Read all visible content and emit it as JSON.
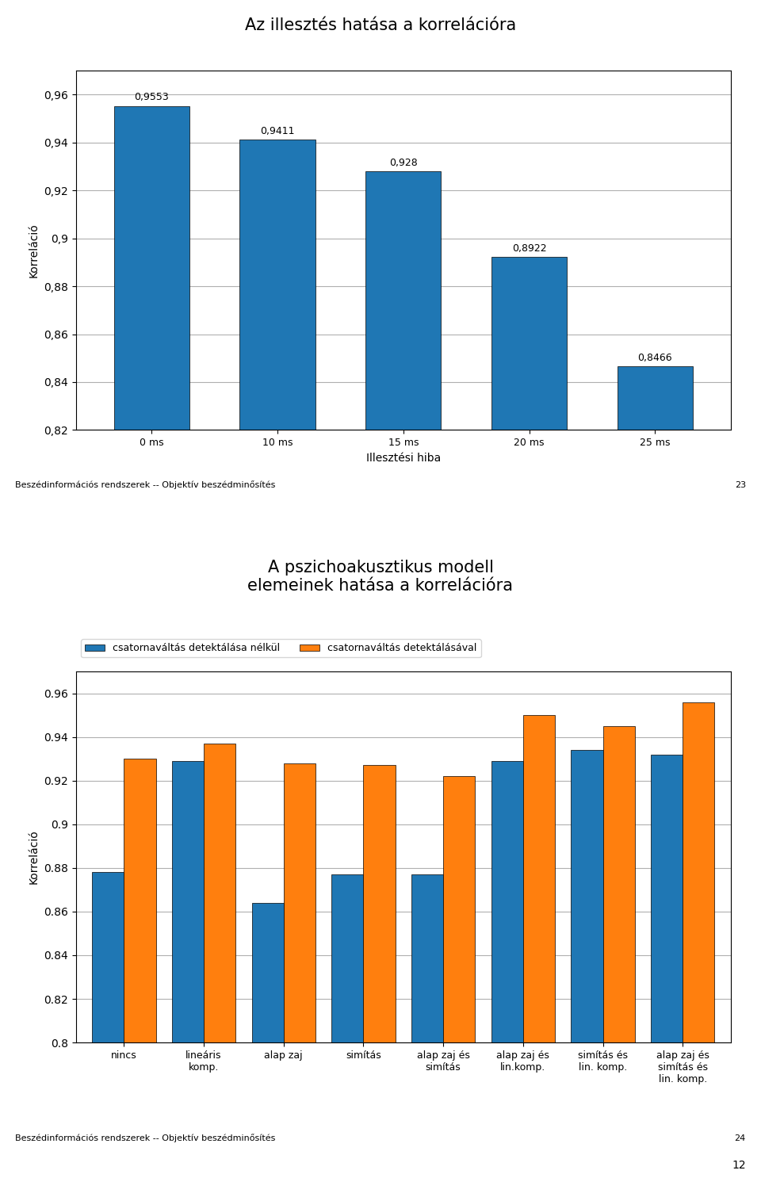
{
  "chart_data": [
    {
      "type": "bar",
      "title": "Az illesztés hatása a korrelációra",
      "categories": [
        "0 ms",
        "10 ms",
        "15 ms",
        "20 ms",
        "25 ms"
      ],
      "values": [
        0.9553,
        0.9411,
        0.928,
        0.8922,
        0.8466
      ],
      "value_labels": [
        "0,9553",
        "0,9411",
        "0,928",
        "0,8922",
        "0,8466"
      ],
      "data_labels": true,
      "xlabel": "Illesztési hiba",
      "ylabel": "Korreláció",
      "ylim": [
        0.82,
        0.97
      ],
      "yticks": [
        {
          "value": 0.82,
          "label": "0,82"
        },
        {
          "value": 0.84,
          "label": "0,84"
        },
        {
          "value": 0.86,
          "label": "0,86"
        },
        {
          "value": 0.88,
          "label": "0,88"
        },
        {
          "value": 0.9,
          "label": "0,9"
        },
        {
          "value": 0.92,
          "label": "0,92"
        },
        {
          "value": 0.94,
          "label": "0,94"
        },
        {
          "value": 0.96,
          "label": "0,96"
        }
      ],
      "grid": true,
      "annotations": [
        "Beszédinformációs rendszerek -- Objektív beszédminősítés",
        "23"
      ]
    },
    {
      "type": "bar",
      "title": "A pszichoakusztikus modell\nelemeinek hatása a korrelációra",
      "categories": [
        "nincs",
        "lineáris\nkomp.",
        "alap zaj",
        "simítás",
        "alap zaj és\nsimítás",
        "alap zaj és\nlin.komp.",
        "simítás és\nlin. komp.",
        "alap zaj és\nsimítás és\nlin. komp."
      ],
      "series": [
        {
          "name": "csatornaváltás detektálása nélkül",
          "values": [
            0.878,
            0.929,
            0.864,
            0.877,
            0.877,
            0.929,
            0.934,
            0.932
          ]
        },
        {
          "name": "csatornaváltás detektálásával",
          "values": [
            0.93,
            0.937,
            0.928,
            0.927,
            0.922,
            0.95,
            0.945,
            0.956
          ]
        }
      ],
      "ylabel": "Korreláció",
      "ylim": [
        0.8,
        0.97
      ],
      "yticks": [
        0.8,
        0.82,
        0.84,
        0.86,
        0.88,
        0.9,
        0.92,
        0.94,
        0.96
      ],
      "grid": true,
      "legend": "upper left",
      "annotations": [
        "Beszédinformációs rendszerek -- Objektív beszédminősítés",
        "24",
        "12"
      ]
    }
  ]
}
